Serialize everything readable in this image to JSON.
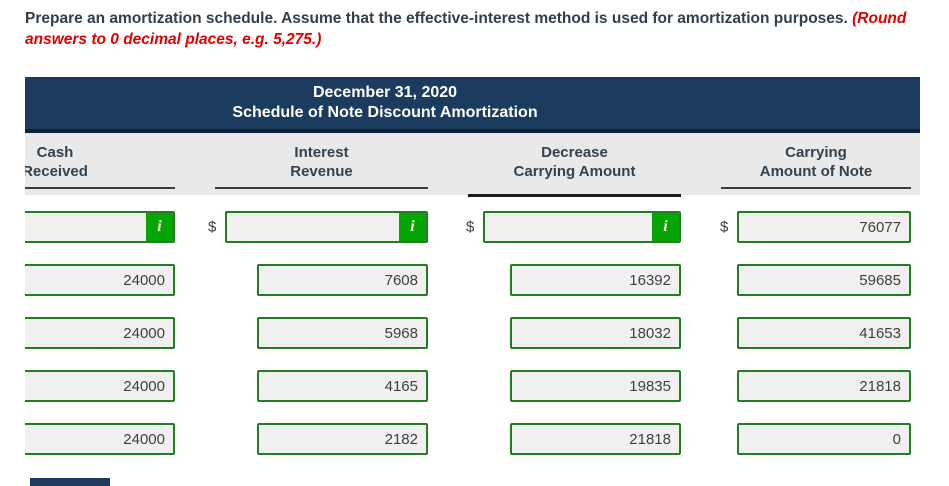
{
  "instruction": {
    "text_main": "Prepare an amortization schedule. Assume that the effective-interest method is used for amortization purposes. ",
    "text_emphasis": "(Round answers to 0 decimal places, e.g. 5,275.)"
  },
  "schedule": {
    "title_line1": "December 31, 2020",
    "title_line2": "Schedule of Note Discount Amortization",
    "columns": [
      {
        "line1": "Cash",
        "line2": "Received"
      },
      {
        "line1": "Interest",
        "line2": "Revenue"
      },
      {
        "line1": "Decrease",
        "line2": "Carrying Amount"
      },
      {
        "line1": "Carrying",
        "line2": "Amount of Note"
      }
    ],
    "currency_symbol": "$",
    "info_button_label": "i",
    "rows": [
      {
        "cash_received": "",
        "interest_revenue": "",
        "decrease_carrying_amount": "",
        "carrying_amount": "76077"
      },
      {
        "cash_received": "24000",
        "interest_revenue": "7608",
        "decrease_carrying_amount": "16392",
        "carrying_amount": "59685"
      },
      {
        "cash_received": "24000",
        "interest_revenue": "5968",
        "decrease_carrying_amount": "18032",
        "carrying_amount": "41653"
      },
      {
        "cash_received": "24000",
        "interest_revenue": "4165",
        "decrease_carrying_amount": "19835",
        "carrying_amount": "21818"
      },
      {
        "cash_received": "24000",
        "interest_revenue": "2182",
        "decrease_carrying_amount": "21818",
        "carrying_amount": "0"
      }
    ]
  },
  "colors": {
    "header_navy": "#1c3c5f",
    "header_band_gray": "#e9e9e9",
    "input_border_green": "#237d23",
    "info_button_green": "#05a505",
    "emphasis_red": "#e00000",
    "text_slate": "#333f48"
  }
}
